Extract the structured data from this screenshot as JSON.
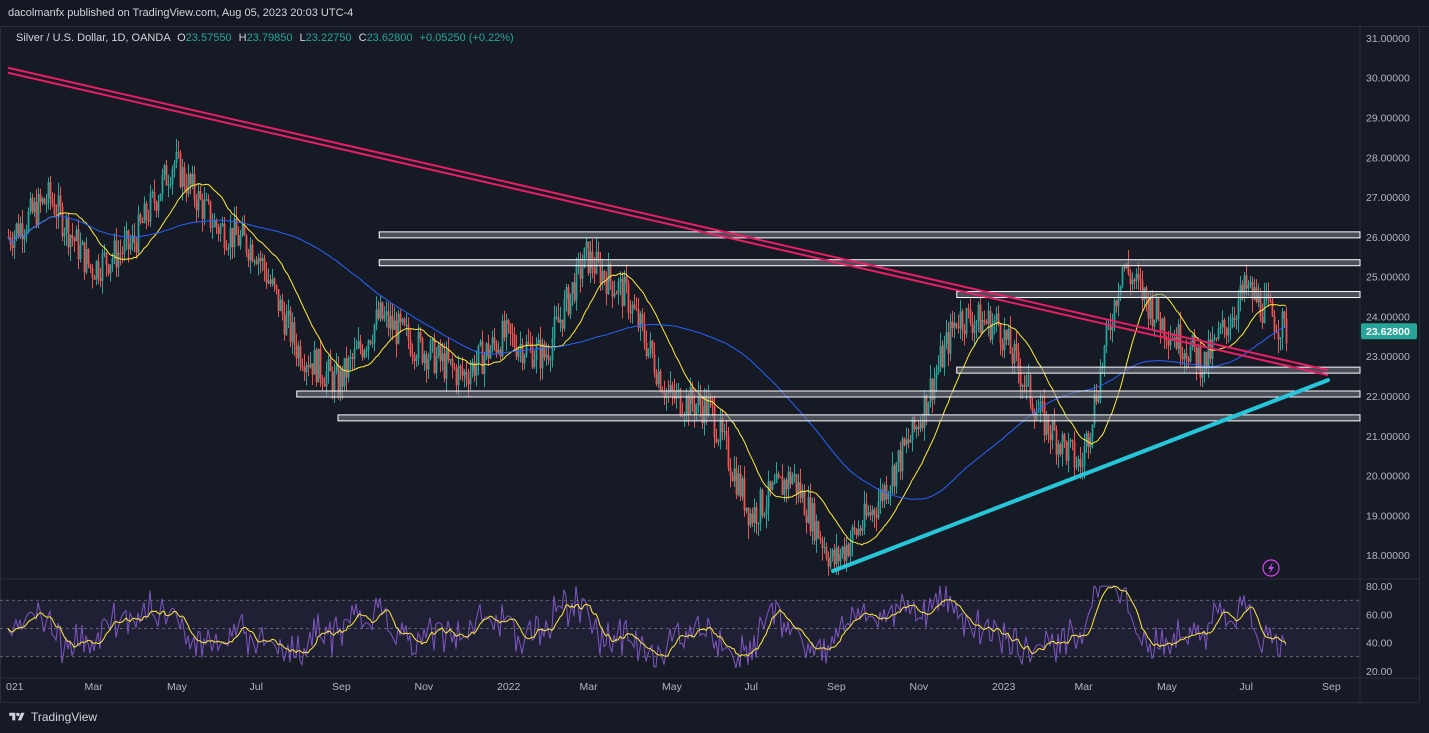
{
  "header": {
    "publisher_line": "dacolmanfx published on TradingView.com, Aug 05, 2023 20:03 UTC-4"
  },
  "legend": {
    "symbol": "Silver / U.S. Dollar, 1D, OANDA",
    "open_label": "O",
    "open": "23.57550",
    "high_label": "H",
    "high": "23.79850",
    "low_label": "L",
    "low": "23.22750",
    "close_label": "C",
    "close": "23.62800",
    "change": "+0.05250 (+0.22%)"
  },
  "footer": {
    "brand": "TradingView"
  },
  "colors": {
    "background": "#161a25",
    "up": "#26a69a",
    "down": "#ef5350",
    "trendline_pink": "#e91e63",
    "trendline_cyan": "#26c6da",
    "ma_fast": "#ffeb3b",
    "ma_slow": "#2962ff",
    "rsi": "#7e57c2",
    "price_tag": "#26a69a"
  },
  "chart_data": [
    {
      "type": "candlestick",
      "title": "Silver / U.S. Dollar, 1D, OANDA",
      "y_ticks": [
        "31.00000",
        "30.00000",
        "29.00000",
        "28.00000",
        "27.00000",
        "26.00000",
        "25.00000",
        "24.00000",
        "23.00000",
        "22.00000",
        "21.00000",
        "20.00000",
        "19.00000",
        "18.00000"
      ],
      "ylim": [
        17.4,
        31.3
      ],
      "x_ticks": [
        "021",
        "Mar",
        "May",
        "Jul",
        "Sep",
        "Nov",
        "2022",
        "Mar",
        "May",
        "Jul",
        "Sep",
        "Nov",
        "2023",
        "Mar",
        "May",
        "Jul",
        "Sep"
      ],
      "last_price": "23.62800",
      "approx_close_path": [
        {
          "x": "2021-01",
          "y": 26.0
        },
        {
          "x": "2021-02",
          "y": 27.0
        },
        {
          "x": "2021-03",
          "y": 25.2
        },
        {
          "x": "2021-04",
          "y": 25.8
        },
        {
          "x": "2021-05",
          "y": 27.9
        },
        {
          "x": "2021-06",
          "y": 26.3
        },
        {
          "x": "2021-07",
          "y": 25.7
        },
        {
          "x": "2021-08",
          "y": 23.2
        },
        {
          "x": "2021-09",
          "y": 22.3
        },
        {
          "x": "2021-10",
          "y": 24.0
        },
        {
          "x": "2021-11",
          "y": 23.2
        },
        {
          "x": "2021-12",
          "y": 22.5
        },
        {
          "x": "2022-01",
          "y": 23.5
        },
        {
          "x": "2022-02",
          "y": 23.0
        },
        {
          "x": "2022-03",
          "y": 25.5
        },
        {
          "x": "2022-04",
          "y": 24.5
        },
        {
          "x": "2022-05",
          "y": 22.0
        },
        {
          "x": "2022-06",
          "y": 21.7
        },
        {
          "x": "2022-07",
          "y": 19.0
        },
        {
          "x": "2022-08",
          "y": 20.0
        },
        {
          "x": "2022-09",
          "y": 17.8
        },
        {
          "x": "2022-10",
          "y": 19.2
        },
        {
          "x": "2022-11",
          "y": 21.2
        },
        {
          "x": "2022-12",
          "y": 24.0
        },
        {
          "x": "2023-01",
          "y": 23.8
        },
        {
          "x": "2023-02",
          "y": 21.5
        },
        {
          "x": "2023-03",
          "y": 20.2
        },
        {
          "x": "2023-04",
          "y": 25.3
        },
        {
          "x": "2023-05",
          "y": 23.8
        },
        {
          "x": "2023-06",
          "y": 22.8
        },
        {
          "x": "2023-07",
          "y": 24.7
        },
        {
          "x": "2023-08",
          "y": 23.6
        }
      ],
      "support_resistance_levels": [
        26.05,
        25.35,
        24.55,
        22.65,
        22.05,
        21.45
      ],
      "descending_trendline": {
        "from": {
          "x": "2021-01",
          "y": 30.2
        },
        "to": {
          "x": "2023-09",
          "y": 22.6
        }
      },
      "ascending_trendline": {
        "from": {
          "x": "2022-09",
          "y": 17.6
        },
        "to": {
          "x": "2023-09",
          "y": 22.4
        }
      }
    },
    {
      "type": "line",
      "title": "RSI",
      "y_ticks": [
        "80.00",
        "60.00",
        "40.00",
        "20.00"
      ],
      "ylim": [
        15,
        85
      ],
      "band": [
        30,
        70
      ],
      "mid_line": 50
    }
  ]
}
